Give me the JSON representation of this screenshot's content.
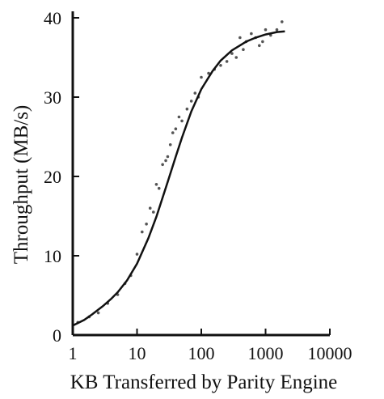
{
  "chart_data": {
    "type": "scatter",
    "xlabel": "KB Transferred by Parity Engine",
    "ylabel": "Throughput (MB/s)",
    "x_scale": "log",
    "xlim": [
      1,
      10000
    ],
    "ylim": [
      0,
      40
    ],
    "x_ticks": [
      1,
      10,
      100,
      1000,
      10000
    ],
    "x_tick_labels": [
      "1",
      "10",
      "100",
      "1000",
      "10000"
    ],
    "y_ticks": [
      0,
      10,
      20,
      30,
      40
    ],
    "y_tick_labels": [
      "0",
      "10",
      "20",
      "30",
      "40"
    ],
    "grid": false,
    "legend": "none",
    "series": [
      {
        "type": "scatter",
        "x": [
          1.2,
          1.8,
          2.5,
          3.5,
          5,
          6.5,
          8,
          10,
          12,
          14,
          16,
          18,
          20,
          22,
          25,
          28,
          30,
          33,
          36,
          40,
          45,
          50,
          60,
          70,
          80,
          90,
          100,
          130,
          160,
          200,
          250,
          300,
          350,
          400,
          450,
          500,
          600,
          700,
          800,
          900,
          1000,
          1200,
          1500,
          1800
        ],
        "y": [
          1.6,
          2.3,
          2.8,
          4.0,
          5.1,
          6.5,
          7.5,
          10.2,
          13.0,
          14.0,
          16.0,
          15.5,
          19.0,
          18.5,
          21.5,
          22.0,
          22.5,
          24.0,
          25.5,
          26.0,
          27.5,
          27.0,
          28.5,
          29.5,
          30.5,
          30.0,
          32.5,
          33.0,
          33.5,
          34.0,
          34.5,
          35.5,
          35.0,
          37.5,
          36.0,
          37.0,
          38.0,
          37.5,
          36.5,
          37.0,
          38.5,
          37.8,
          38.5,
          39.5
        ]
      },
      {
        "type": "line",
        "x": [
          1,
          1.5,
          2,
          3,
          4,
          5,
          7,
          10,
          15,
          20,
          30,
          40,
          50,
          70,
          100,
          150,
          200,
          300,
          500,
          700,
          1000,
          1500,
          2000
        ],
        "y": [
          1.2,
          1.9,
          2.6,
          3.7,
          4.6,
          5.4,
          6.9,
          9.0,
          12.2,
          14.9,
          19.3,
          22.5,
          24.9,
          28.2,
          31.0,
          33.3,
          34.6,
          35.9,
          37.0,
          37.5,
          37.9,
          38.2,
          38.3
        ]
      }
    ]
  }
}
